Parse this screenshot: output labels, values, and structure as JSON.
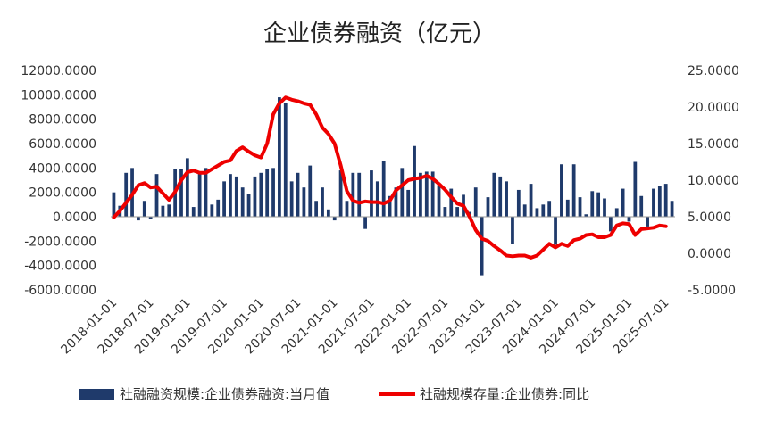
{
  "chart_data": {
    "type": "bar+line",
    "title": "企业债券融资（亿元）",
    "left_axis": {
      "min": -6000,
      "max": 12000,
      "step": 2000,
      "tick_labels": [
        "-6000.0000",
        "-4000.0000",
        "-2000.0000",
        "0.0000",
        "2000.0000",
        "4000.0000",
        "6000.0000",
        "8000.0000",
        "10000.0000",
        "12000.0000"
      ]
    },
    "right_axis": {
      "min": -5,
      "max": 25,
      "step": 5,
      "tick_labels": [
        "-5.0000",
        "0.0000",
        "5.0000",
        "10.0000",
        "15.0000",
        "20.0000",
        "25.0000"
      ]
    },
    "x_tick_labels": [
      "2018-01-01",
      "2018-07-01",
      "2019-01-01",
      "2019-07-01",
      "2020-01-01",
      "2020-07-01",
      "2021-01-01",
      "2021-07-01",
      "2022-01-01",
      "2022-07-01",
      "2023-01-01",
      "2023-07-01",
      "2024-01-01",
      "2024-07-01",
      "2025-01-01",
      "2025-07-01"
    ],
    "x_start": "2018-01",
    "series": [
      {
        "name": "社融规模存量:企业债券:同比",
        "axis": "right",
        "kind": "line",
        "color": "#ee0000",
        "values": [
          4.9,
          5.8,
          6.9,
          8.0,
          9.3,
          9.6,
          9.0,
          9.1,
          8.2,
          7.3,
          8.4,
          10.0,
          11.1,
          11.3,
          11.0,
          11.0,
          11.5,
          12.0,
          12.5,
          12.7,
          14.0,
          14.5,
          13.9,
          13.4,
          13.1,
          15.0,
          19.0,
          20.5,
          21.3,
          21.0,
          20.8,
          20.5,
          20.3,
          19.0,
          17.2,
          16.3,
          15.0,
          12.0,
          8.5,
          7.2,
          6.9,
          7.1,
          7.0,
          7.0,
          6.8,
          7.2,
          8.6,
          9.3,
          10.0,
          10.2,
          10.3,
          10.6,
          10.2,
          9.5,
          8.7,
          7.7,
          6.8,
          6.5,
          5.0,
          3.2,
          2.0,
          1.7,
          1.0,
          0.4,
          -0.3,
          -0.4,
          -0.3,
          -0.3,
          -0.6,
          -0.3,
          0.5,
          1.3,
          0.8,
          1.3,
          1.0,
          1.8,
          2.0,
          2.5,
          2.6,
          2.2,
          2.2,
          2.5,
          3.8,
          4.1,
          4.0,
          2.5,
          3.3,
          3.4,
          3.5,
          3.8,
          3.7
        ]
      },
      {
        "name": "社融融资规模:企业债券融资:当月值",
        "axis": "left",
        "kind": "bar",
        "color": "#1f3a6b",
        "values": [
          2000,
          900,
          3600,
          4000,
          -300,
          1300,
          -200,
          3500,
          900,
          1000,
          3900,
          3900,
          4800,
          800,
          3700,
          4000,
          1000,
          1400,
          2900,
          3500,
          3300,
          2400,
          1900,
          3300,
          3600,
          3900,
          4000,
          9800,
          9300,
          2900,
          3600,
          2400,
          4200,
          1300,
          2400,
          600,
          -300,
          3800,
          1300,
          3600,
          3600,
          -1000,
          3800,
          2900,
          4600,
          1700,
          2400,
          4000,
          2200,
          5800,
          3600,
          3700,
          3700,
          2600,
          800,
          2300,
          800,
          1800,
          400,
          2400,
          -4800,
          1600,
          3600,
          3300,
          2900,
          -2200,
          2200,
          1000,
          2700,
          700,
          1000,
          1300,
          -2300,
          4300,
          1400,
          4300,
          1600,
          200,
          2100,
          2000,
          1500,
          -1200,
          700,
          2300,
          -400,
          4500,
          1700,
          -800,
          2300,
          2500,
          2700,
          1300
        ]
      }
    ],
    "legend_position": "bottom",
    "grid": false
  }
}
